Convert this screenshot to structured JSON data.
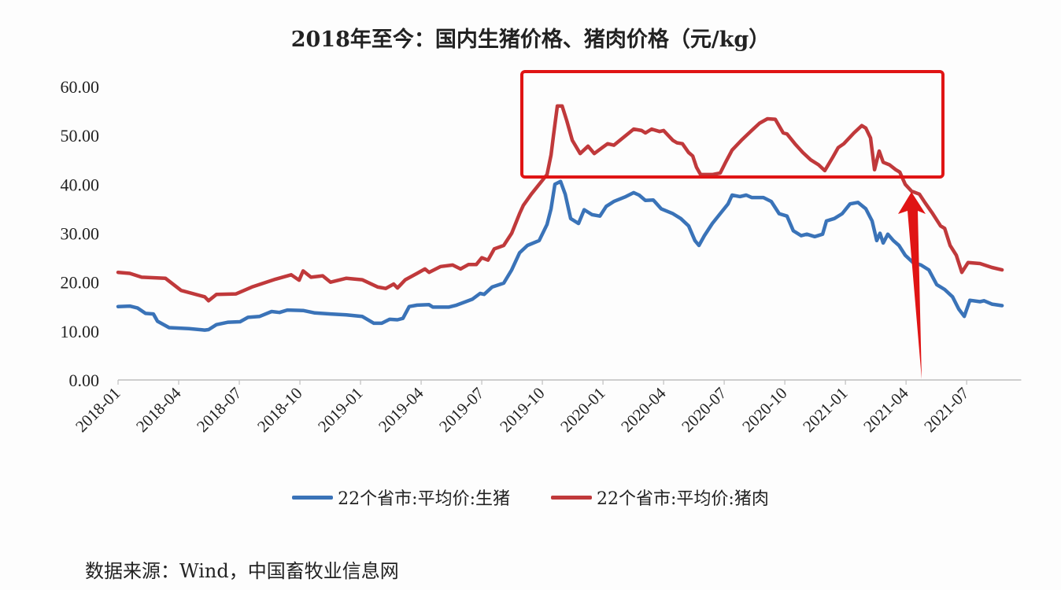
{
  "title": "2018年至今：国内生猪价格、猪肉价格（元/kg）",
  "source": "数据来源：Wind，中国畜牧业信息网",
  "colors": {
    "pig": "#3a73b8",
    "pork": "#c0393b",
    "annotation": "#e01414",
    "axis": "#bfbfbf"
  },
  "legend": [
    {
      "label": "22个省市:平均价:生猪",
      "color": "#3a73b8"
    },
    {
      "label": "22个省市:平均价:猪肉",
      "color": "#c0393b"
    }
  ],
  "annotations": [
    {
      "type": "rectangle",
      "label": "highlight-box",
      "from": "2019-10",
      "to": "2021-04",
      "y_range": [
        41.5,
        62.5
      ]
    },
    {
      "type": "arrow",
      "label": "arrow-up",
      "at": "2021-04",
      "points_to_value": 38.5
    }
  ],
  "chart_data": {
    "type": "line",
    "title": "2018年至今：国内生猪价格、猪肉价格（元/kg）",
    "xlabel": "",
    "ylabel": "元/kg",
    "ylim": [
      0,
      60
    ],
    "yticks": [
      "0.00",
      "10.00",
      "20.00",
      "30.00",
      "40.00",
      "50.00",
      "60.00"
    ],
    "xticks": [
      "2018-01",
      "2018-04",
      "2018-07",
      "2018-10",
      "2019-01",
      "2019-04",
      "2019-07",
      "2019-10",
      "2020-01",
      "2020-04",
      "2020-07",
      "2020-10",
      "2021-01",
      "2021-04",
      "2021-07"
    ],
    "x_unit": "months since 2018-01",
    "x_max": 44.7,
    "grid": false,
    "legend_position": "bottom",
    "series": [
      {
        "name": "22个省市:平均价:生猪",
        "color": "#3a73b8",
        "points": [
          [
            0,
            15.0
          ],
          [
            0.58,
            15.1
          ],
          [
            0.97,
            14.7
          ],
          [
            1.36,
            13.6
          ],
          [
            1.75,
            13.5
          ],
          [
            1.95,
            12.0
          ],
          [
            2.53,
            10.7
          ],
          [
            3.51,
            10.5
          ],
          [
            4.29,
            10.2
          ],
          [
            4.48,
            10.3
          ],
          [
            4.87,
            11.3
          ],
          [
            5.45,
            11.8
          ],
          [
            6.04,
            11.9
          ],
          [
            6.43,
            12.8
          ],
          [
            7.01,
            13.0
          ],
          [
            7.6,
            14.0
          ],
          [
            7.99,
            13.8
          ],
          [
            8.38,
            14.3
          ],
          [
            9.16,
            14.2
          ],
          [
            9.74,
            13.7
          ],
          [
            10.52,
            13.5
          ],
          [
            11.3,
            13.3
          ],
          [
            12.08,
            13.0
          ],
          [
            12.66,
            11.6
          ],
          [
            13.05,
            11.6
          ],
          [
            13.44,
            12.4
          ],
          [
            13.83,
            12.3
          ],
          [
            14.1,
            12.6
          ],
          [
            14.41,
            15.0
          ],
          [
            14.8,
            15.3
          ],
          [
            15.39,
            15.4
          ],
          [
            15.58,
            14.9
          ],
          [
            16.36,
            14.9
          ],
          [
            16.75,
            15.3
          ],
          [
            17.53,
            16.5
          ],
          [
            17.92,
            17.7
          ],
          [
            18.12,
            17.5
          ],
          [
            18.51,
            19.0
          ],
          [
            19.09,
            19.8
          ],
          [
            19.48,
            22.5
          ],
          [
            19.87,
            26.0
          ],
          [
            20.26,
            27.5
          ],
          [
            20.84,
            28.5
          ],
          [
            21.23,
            31.8
          ],
          [
            21.43,
            35.0
          ],
          [
            21.62,
            40.0
          ],
          [
            21.9,
            40.6
          ],
          [
            22.13,
            38.0
          ],
          [
            22.4,
            33.0
          ],
          [
            22.79,
            32.0
          ],
          [
            23.07,
            34.8
          ],
          [
            23.46,
            33.8
          ],
          [
            23.85,
            33.5
          ],
          [
            24.16,
            35.5
          ],
          [
            24.54,
            36.5
          ],
          [
            25.13,
            37.5
          ],
          [
            25.52,
            38.3
          ],
          [
            25.79,
            37.8
          ],
          [
            26.1,
            36.7
          ],
          [
            26.49,
            36.8
          ],
          [
            26.88,
            35.0
          ],
          [
            27.46,
            34.0
          ],
          [
            27.85,
            33.0
          ],
          [
            28.24,
            31.5
          ],
          [
            28.55,
            28.5
          ],
          [
            28.75,
            27.5
          ],
          [
            29.02,
            29.5
          ],
          [
            29.41,
            32.0
          ],
          [
            29.8,
            34.0
          ],
          [
            30.19,
            36.0
          ],
          [
            30.39,
            37.8
          ],
          [
            30.78,
            37.5
          ],
          [
            31.09,
            37.8
          ],
          [
            31.36,
            37.3
          ],
          [
            31.94,
            37.3
          ],
          [
            32.33,
            36.5
          ],
          [
            32.72,
            34.0
          ],
          [
            33.11,
            33.5
          ],
          [
            33.42,
            30.5
          ],
          [
            33.81,
            29.5
          ],
          [
            34.09,
            29.8
          ],
          [
            34.48,
            29.3
          ],
          [
            34.87,
            29.8
          ],
          [
            35.06,
            32.5
          ],
          [
            35.45,
            33.0
          ],
          [
            35.84,
            34.0
          ],
          [
            36.23,
            36.0
          ],
          [
            36.62,
            36.3
          ],
          [
            37.01,
            35.0
          ],
          [
            37.32,
            32.5
          ],
          [
            37.55,
            28.5
          ],
          [
            37.71,
            30.0
          ],
          [
            37.87,
            28.0
          ],
          [
            38.1,
            29.8
          ],
          [
            38.37,
            28.5
          ],
          [
            38.65,
            27.5
          ],
          [
            38.96,
            25.5
          ],
          [
            39.35,
            24.0
          ],
          [
            39.74,
            23.5
          ],
          [
            40.13,
            22.5
          ],
          [
            40.52,
            19.5
          ],
          [
            40.91,
            18.5
          ],
          [
            41.3,
            17.0
          ],
          [
            41.61,
            14.5
          ],
          [
            41.88,
            13.0
          ],
          [
            42.16,
            16.3
          ],
          [
            42.66,
            16.0
          ],
          [
            42.86,
            16.2
          ],
          [
            43.25,
            15.5
          ],
          [
            43.75,
            15.2
          ]
        ]
      },
      {
        "name": "22个省市:平均价:猪肉",
        "color": "#c0393b",
        "points": [
          [
            0,
            22.0
          ],
          [
            0.58,
            21.8
          ],
          [
            1.17,
            21.0
          ],
          [
            2.34,
            20.8
          ],
          [
            3.12,
            18.3
          ],
          [
            4.29,
            17.0
          ],
          [
            4.48,
            16.2
          ],
          [
            4.87,
            17.5
          ],
          [
            5.84,
            17.6
          ],
          [
            6.62,
            19.0
          ],
          [
            7.79,
            20.6
          ],
          [
            8.57,
            21.5
          ],
          [
            8.96,
            20.4
          ],
          [
            9.16,
            22.3
          ],
          [
            9.55,
            21.0
          ],
          [
            10.13,
            21.3
          ],
          [
            10.52,
            20.0
          ],
          [
            11.3,
            20.8
          ],
          [
            12.08,
            20.5
          ],
          [
            12.86,
            19.0
          ],
          [
            13.25,
            18.7
          ],
          [
            13.64,
            19.6
          ],
          [
            13.83,
            18.8
          ],
          [
            14.22,
            20.5
          ],
          [
            14.8,
            21.8
          ],
          [
            15.19,
            22.7
          ],
          [
            15.39,
            22.0
          ],
          [
            15.97,
            23.2
          ],
          [
            16.56,
            23.5
          ],
          [
            16.95,
            22.7
          ],
          [
            17.34,
            23.6
          ],
          [
            17.73,
            23.6
          ],
          [
            18.0,
            25.0
          ],
          [
            18.31,
            24.5
          ],
          [
            18.62,
            26.8
          ],
          [
            19.09,
            27.5
          ],
          [
            19.48,
            30.0
          ],
          [
            19.87,
            34.0
          ],
          [
            20.06,
            35.7
          ],
          [
            20.45,
            38.0
          ],
          [
            20.84,
            40.0
          ],
          [
            21.23,
            42.0
          ],
          [
            21.43,
            46.0
          ],
          [
            21.55,
            50.0
          ],
          [
            21.74,
            56.0
          ],
          [
            21.98,
            56.0
          ],
          [
            22.21,
            53.0
          ],
          [
            22.48,
            49.0
          ],
          [
            22.87,
            46.3
          ],
          [
            23.26,
            47.8
          ],
          [
            23.57,
            46.3
          ],
          [
            23.96,
            47.5
          ],
          [
            24.23,
            48.3
          ],
          [
            24.54,
            48.0
          ],
          [
            25.13,
            50.0
          ],
          [
            25.52,
            51.3
          ],
          [
            25.91,
            51.0
          ],
          [
            26.1,
            50.5
          ],
          [
            26.41,
            51.3
          ],
          [
            26.8,
            50.8
          ],
          [
            27.0,
            51.0
          ],
          [
            27.46,
            49.0
          ],
          [
            27.66,
            48.5
          ],
          [
            27.93,
            48.3
          ],
          [
            28.24,
            46.5
          ],
          [
            28.44,
            45.8
          ],
          [
            28.63,
            43.5
          ],
          [
            28.83,
            42.0
          ],
          [
            29.41,
            42.0
          ],
          [
            29.8,
            42.3
          ],
          [
            30.07,
            44.5
          ],
          [
            30.39,
            47.0
          ],
          [
            30.85,
            49.0
          ],
          [
            31.36,
            51.0
          ],
          [
            31.75,
            52.5
          ],
          [
            32.14,
            53.4
          ],
          [
            32.53,
            53.3
          ],
          [
            32.92,
            50.5
          ],
          [
            33.11,
            50.3
          ],
          [
            33.5,
            48.3
          ],
          [
            33.89,
            46.5
          ],
          [
            34.28,
            45.0
          ],
          [
            34.67,
            44.0
          ],
          [
            34.98,
            42.8
          ],
          [
            35.37,
            45.5
          ],
          [
            35.64,
            47.5
          ],
          [
            35.92,
            48.3
          ],
          [
            36.42,
            50.5
          ],
          [
            36.81,
            52.0
          ],
          [
            37.01,
            51.5
          ],
          [
            37.24,
            49.5
          ],
          [
            37.44,
            43.0
          ],
          [
            37.67,
            46.8
          ],
          [
            37.87,
            44.5
          ],
          [
            38.18,
            44.0
          ],
          [
            38.49,
            43.0
          ],
          [
            38.69,
            42.5
          ],
          [
            38.96,
            40.0
          ],
          [
            39.27,
            38.6
          ],
          [
            39.66,
            38.0
          ],
          [
            39.93,
            36.3
          ],
          [
            40.32,
            34.0
          ],
          [
            40.71,
            31.5
          ],
          [
            40.91,
            31.0
          ],
          [
            41.18,
            27.5
          ],
          [
            41.49,
            25.5
          ],
          [
            41.76,
            22.0
          ],
          [
            42.07,
            24.0
          ],
          [
            42.66,
            23.8
          ],
          [
            43.25,
            23.0
          ],
          [
            43.75,
            22.5
          ]
        ]
      }
    ]
  }
}
